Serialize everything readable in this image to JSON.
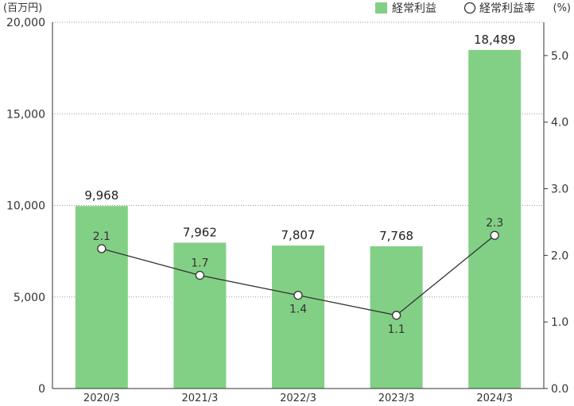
{
  "chart_data": {
    "type": "bar",
    "categories": [
      "2020/3",
      "2021/3",
      "2022/3",
      "2023/3",
      "2024/3"
    ],
    "series": [
      {
        "name": "経常利益",
        "type": "bar",
        "axis": "left",
        "values": [
          9968,
          7962,
          7807,
          7768,
          18489
        ],
        "labels": [
          "9,968",
          "7,962",
          "7,807",
          "7,768",
          "18,489"
        ]
      },
      {
        "name": "経常利益率",
        "type": "line",
        "axis": "right",
        "values": [
          2.1,
          1.7,
          1.4,
          1.1,
          2.3
        ],
        "labels": [
          "2.1",
          "1.7",
          "1.4",
          "1.1",
          "2.3"
        ]
      }
    ],
    "left_axis": {
      "unit": "(百万円)",
      "ylim": [
        0,
        20000
      ],
      "ticks": [
        "0",
        "5,000",
        "10,000",
        "15,000",
        "20,000"
      ]
    },
    "right_axis": {
      "unit": "(%)",
      "ylim": [
        0,
        5.5
      ],
      "ticks": [
        "0.0",
        "1.0",
        "2.0",
        "3.0",
        "4.0",
        "5.0"
      ]
    },
    "grid": true,
    "legend_position": "top-right",
    "colors": {
      "bar": "#82d085",
      "line": "#333333",
      "marker_fill": "#ffffff",
      "marker_stroke": "#333333",
      "grid": "#999999",
      "axis": "#333333"
    }
  }
}
